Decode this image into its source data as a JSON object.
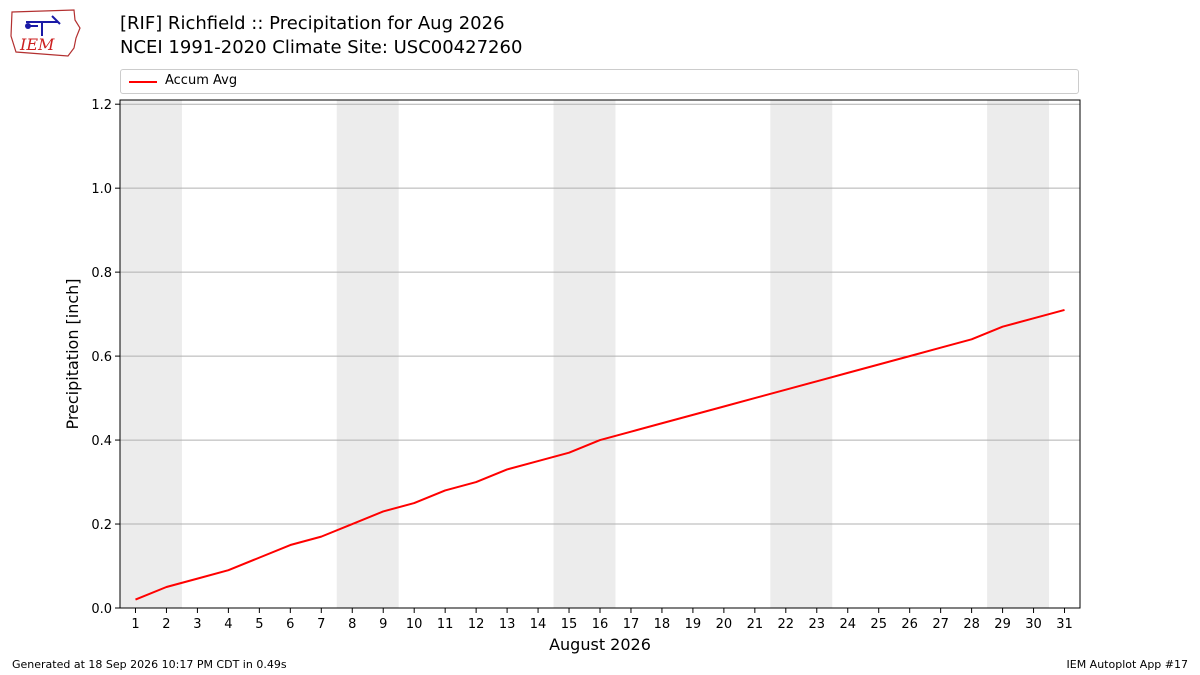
{
  "header": {
    "logo_text": "IEM",
    "title": "[RIF] Richfield :: Precipitation for Aug 2026",
    "subtitle": "NCEI 1991-2020 Climate Site: USC00427260"
  },
  "footer": {
    "generated": "Generated at 18 Sep 2026 10:17 PM CDT in 0.49s",
    "app": "IEM Autoplot App #17"
  },
  "chart_data": {
    "type": "line",
    "title": "[RIF] Richfield :: Precipitation for Aug 2026",
    "subtitle": "NCEI 1991-2020 Climate Site: USC00427260",
    "xlabel": "August 2026",
    "ylabel": "Precipitation [inch]",
    "xlim": [
      0.5,
      31.5
    ],
    "ylim": [
      0,
      1.21
    ],
    "x_ticks": [
      1,
      2,
      3,
      4,
      5,
      6,
      7,
      8,
      9,
      10,
      11,
      12,
      13,
      14,
      15,
      16,
      17,
      18,
      19,
      20,
      21,
      22,
      23,
      24,
      25,
      26,
      27,
      28,
      29,
      30,
      31
    ],
    "y_ticks": [
      0.0,
      0.2,
      0.4,
      0.6,
      0.8,
      1.0,
      1.2
    ],
    "y_tick_labels": [
      "0.0",
      "0.2",
      "0.4",
      "0.6",
      "0.8",
      "1.0",
      "1.2"
    ],
    "grid": "y-major",
    "legend": "top",
    "weekend_shading": [
      [
        1,
        2
      ],
      [
        8,
        9
      ],
      [
        15,
        16
      ],
      [
        22,
        23
      ],
      [
        29,
        30
      ]
    ],
    "weekend_color": "#ececec",
    "x": [
      1,
      2,
      3,
      4,
      5,
      6,
      7,
      8,
      9,
      10,
      11,
      12,
      13,
      14,
      15,
      16,
      17,
      18,
      19,
      20,
      21,
      22,
      23,
      24,
      25,
      26,
      27,
      28,
      29,
      30,
      31
    ],
    "series": [
      {
        "name": "Accum Avg",
        "color": "#ff0000",
        "values": [
          0.02,
          0.05,
          0.07,
          0.09,
          0.12,
          0.15,
          0.17,
          0.2,
          0.23,
          0.25,
          0.28,
          0.3,
          0.33,
          0.35,
          0.37,
          0.4,
          0.42,
          0.44,
          0.46,
          0.48,
          0.5,
          0.52,
          0.54,
          0.56,
          0.58,
          0.6,
          0.62,
          0.64,
          0.67,
          0.69,
          0.71
        ]
      }
    ]
  }
}
